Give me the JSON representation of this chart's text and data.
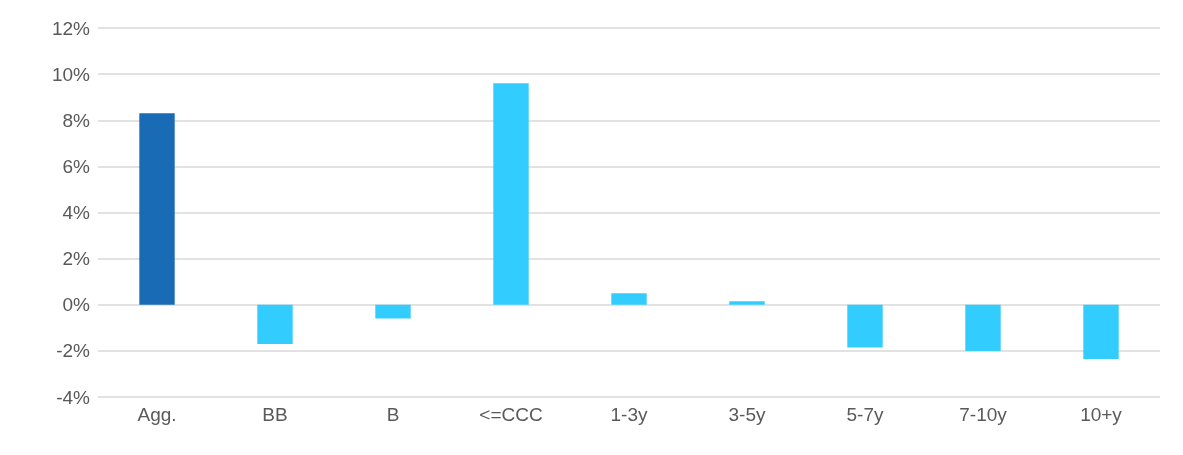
{
  "chart_data": {
    "type": "bar",
    "categories": [
      "Agg.",
      "BB",
      "B",
      "<=CCC",
      "1-3y",
      "3-5y",
      "5-7y",
      "7-10y",
      "10+y"
    ],
    "values": [
      8.3,
      -1.7,
      -0.6,
      9.6,
      0.5,
      0.15,
      -1.85,
      -2.0,
      -2.35
    ],
    "colors": [
      "#1a6bb5",
      "#33ccff",
      "#33ccff",
      "#33ccff",
      "#33ccff",
      "#33ccff",
      "#33ccff",
      "#33ccff",
      "#33ccff"
    ],
    "ylim": [
      -4,
      12
    ],
    "yticks": [
      {
        "value": -4,
        "label": "-4%"
      },
      {
        "value": -2,
        "label": "-2%"
      },
      {
        "value": 0,
        "label": "0%"
      },
      {
        "value": 2,
        "label": "2%"
      },
      {
        "value": 4,
        "label": "4%"
      },
      {
        "value": 6,
        "label": "6%"
      },
      {
        "value": 8,
        "label": "8%"
      },
      {
        "value": 10,
        "label": "10%"
      },
      {
        "value": 12,
        "label": "12%"
      }
    ],
    "grid": "y"
  }
}
